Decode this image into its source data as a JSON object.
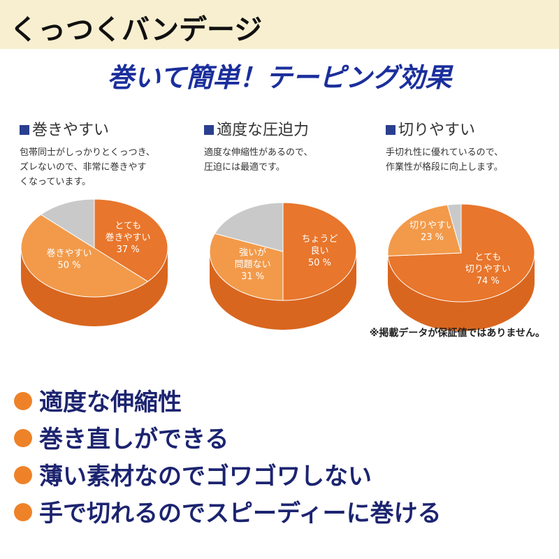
{
  "header": {
    "title": "くっつくバンデージ"
  },
  "subtitle": "巻いて簡単！テーピング効果",
  "chart_data": [
    {
      "type": "pie",
      "title": "巻きやすい",
      "description": [
        "包帯同士がしっかりとくっつき、",
        "ズレないので、非常に巻きやす",
        "くなっています。"
      ],
      "categories": [
        "とても\n巻きやすい",
        "巻きやすい",
        null
      ],
      "values": [
        37,
        50,
        13
      ],
      "value_labels": [
        "37 %",
        "50 %",
        null
      ],
      "colors": [
        "#e8762c",
        "#f29a4a",
        "#c9c9c9"
      ]
    },
    {
      "type": "pie",
      "title": "適度な圧迫力",
      "description": [
        "適度な伸縮性があるので、",
        "圧迫には最適です。"
      ],
      "categories": [
        "ちょうど\n良い",
        "強いが\n問題ない",
        null
      ],
      "values": [
        50,
        31,
        19
      ],
      "value_labels": [
        "50 %",
        "31 %",
        null
      ],
      "colors": [
        "#e8762c",
        "#f29a4a",
        "#c9c9c9"
      ]
    },
    {
      "type": "pie",
      "title": "切りやすい",
      "description": [
        "手切れ性に優れているので、",
        "作業性が格段に向上します。"
      ],
      "categories": [
        "とても\n切りやすい",
        "切りやすい",
        null
      ],
      "values": [
        74,
        23,
        3
      ],
      "value_labels": [
        "74 %",
        "23 %",
        null
      ],
      "colors": [
        "#e8762c",
        "#f29a4a",
        "#c9c9c9"
      ]
    }
  ],
  "note": "※掲載データが保証値ではありません。",
  "features": [
    "適度な伸縮性",
    "巻き直しができる",
    "薄い素材なのでゴワゴワしない",
    "手で切れるのでスピーディーに巻ける"
  ]
}
